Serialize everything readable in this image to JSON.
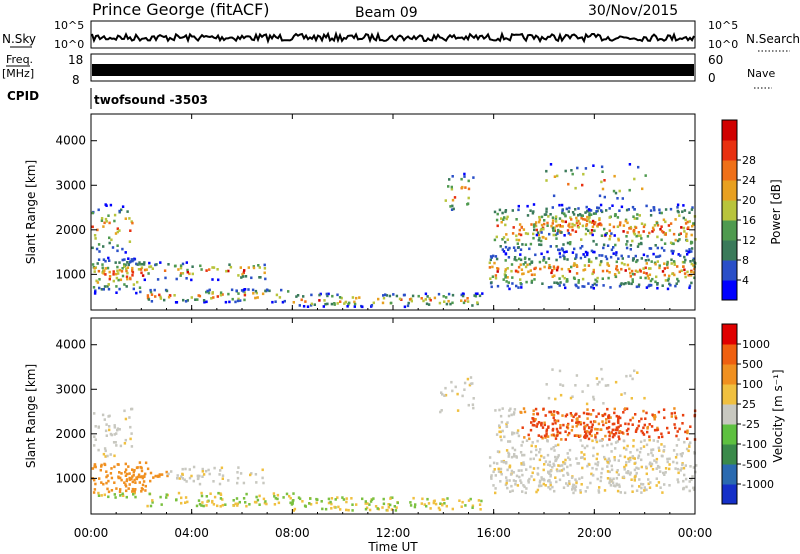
{
  "header": {
    "station": "Prince George (fitACF)",
    "beam": "Beam 09",
    "date": "30/Nov/2015"
  },
  "panels": {
    "nsky": {
      "left_label": "N.Sky",
      "right_label": "N.Search",
      "left_ticks": [
        "10^5",
        "10^0"
      ],
      "right_ticks": [
        "10^5",
        "10^0"
      ]
    },
    "freq": {
      "left_label_top": "Freq.",
      "left_label_bottom": "[MHz]",
      "left_ticks": [
        "18",
        "8"
      ],
      "right_label": "Nave",
      "right_ticks": [
        "60",
        "0"
      ]
    },
    "cpid": {
      "label": "CPID",
      "value": "twofsound -3503"
    }
  },
  "chart_data": [
    {
      "type": "heatmap",
      "name": "power",
      "ylabel": "Slant Range [km]",
      "xlabel": "Time UT",
      "ylim": [
        200,
        4600
      ],
      "y_ticks": [
        1000,
        2000,
        3000,
        4000
      ],
      "x_ticks": [
        "00:00",
        "04:00",
        "08:00",
        "12:00",
        "16:00",
        "20:00",
        "00:00"
      ],
      "colorbar": {
        "label": "Power [dB]",
        "ticks": [
          "4",
          "8",
          "12",
          "16",
          "20",
          "24",
          "28"
        ],
        "colors": [
          "#0000ff",
          "#2a4fc8",
          "#3a7a5a",
          "#4f9a4f",
          "#b8c43c",
          "#e8a020",
          "#ef7018",
          "#e83010",
          "#d00000"
        ]
      }
    },
    {
      "type": "heatmap",
      "name": "velocity",
      "ylabel": "Slant Range [km]",
      "xlabel": "Time UT",
      "ylim": [
        200,
        4600
      ],
      "y_ticks": [
        1000,
        2000,
        3000,
        4000
      ],
      "x_ticks": [
        "00:00",
        "04:00",
        "08:00",
        "12:00",
        "16:00",
        "20:00",
        "00:00"
      ],
      "colorbar": {
        "label": "Velocity [m s⁻¹]",
        "ticks": [
          "1000",
          "500",
          "100",
          "25",
          "-25",
          "-100",
          "-500",
          "-1000"
        ],
        "colors": [
          "#1530c8",
          "#2a6ab0",
          "#3a8a4a",
          "#5ec040",
          "#c8c8c0",
          "#f0c040",
          "#f09020",
          "#ef6010",
          "#e00000"
        ]
      }
    }
  ]
}
